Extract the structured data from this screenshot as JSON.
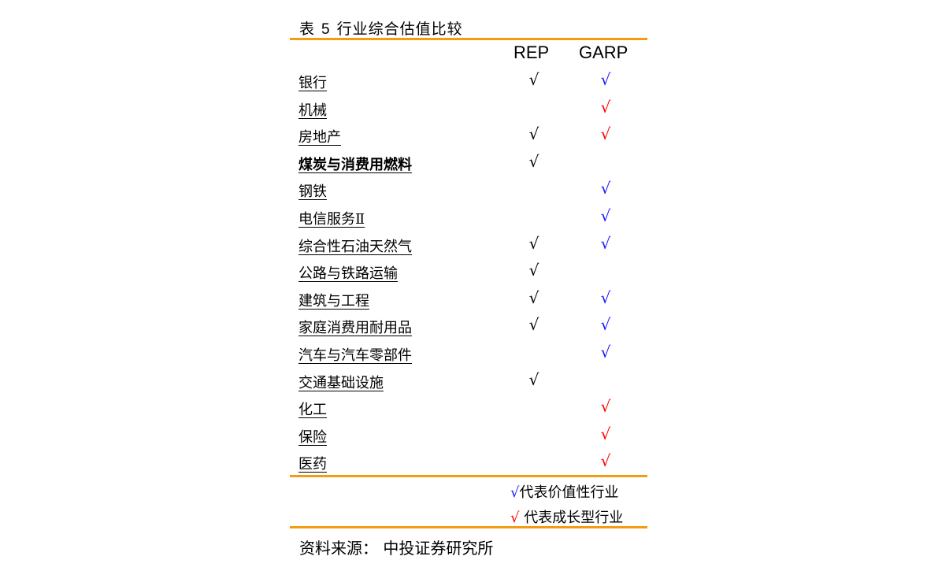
{
  "title": {
    "prefix": "表",
    "number": "5",
    "text": "行业综合估值比较"
  },
  "columns": {
    "rep": "REP",
    "garp": "GARP"
  },
  "check_glyph": "√",
  "colors": {
    "value": "#1a1aff",
    "growth": "#ff0000",
    "rep": "#000000",
    "accent_rule": "#f39c12"
  },
  "rows": [
    {
      "label": "银行",
      "bold": false,
      "rep": true,
      "garp": "blue"
    },
    {
      "label": "机械",
      "bold": false,
      "rep": false,
      "garp": "red"
    },
    {
      "label": "房地产",
      "bold": false,
      "rep": true,
      "garp": "red"
    },
    {
      "label": "煤炭与消费用燃料",
      "bold": true,
      "rep": true,
      "garp": ""
    },
    {
      "label": "钢铁",
      "bold": false,
      "rep": false,
      "garp": "blue"
    },
    {
      "label": "电信服务Ⅱ",
      "bold": false,
      "rep": false,
      "garp": "blue"
    },
    {
      "label": "综合性石油天然气",
      "bold": false,
      "rep": true,
      "garp": "blue"
    },
    {
      "label": "公路与铁路运输",
      "bold": false,
      "rep": true,
      "garp": ""
    },
    {
      "label": "建筑与工程",
      "bold": false,
      "rep": true,
      "garp": "blue"
    },
    {
      "label": "家庭消费用耐用品",
      "bold": false,
      "rep": true,
      "garp": "blue"
    },
    {
      "label": "汽车与汽车零部件",
      "bold": false,
      "rep": false,
      "garp": "blue"
    },
    {
      "label": "交通基础设施",
      "bold": false,
      "rep": true,
      "garp": ""
    },
    {
      "label": "化工",
      "bold": false,
      "rep": false,
      "garp": "red"
    },
    {
      "label": "保险",
      "bold": false,
      "rep": false,
      "garp": "red"
    },
    {
      "label": "医药",
      "bold": false,
      "rep": false,
      "garp": "red"
    }
  ],
  "legend": {
    "value": {
      "mark": "√",
      "text": "代表价值性行业"
    },
    "growth": {
      "mark": "√",
      "text": " 代表成长型行业"
    }
  },
  "source": "资料来源：  中投证券研究所"
}
